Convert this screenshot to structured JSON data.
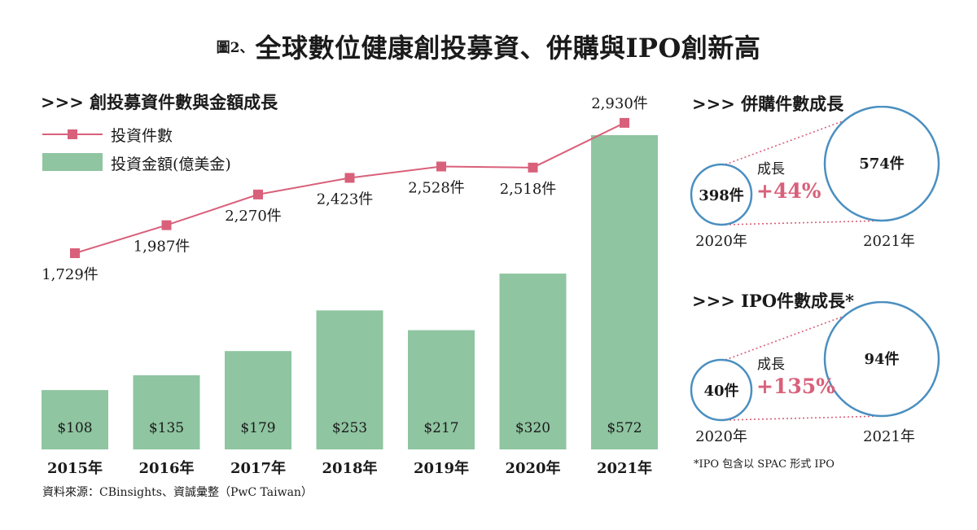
{
  "title": {
    "label": "圖2、",
    "text": "全球數位健康創投募資、併購與IPO創新高"
  },
  "main_chart": {
    "heading": ">>> 創投募資件數與金額成長",
    "legend": {
      "line_label": "投資件數",
      "bar_label": "投資金額(億美金)"
    },
    "colors": {
      "line": "#d9607a",
      "bar": "#8fc5a1"
    }
  },
  "chart_data": [
    {
      "type": "bar",
      "title": "創投募資件數與金額成長",
      "categories": [
        "2015年",
        "2016年",
        "2017年",
        "2018年",
        "2019年",
        "2020年",
        "2021年"
      ],
      "series": [
        {
          "name": "投資金額(億美金)",
          "type": "bar",
          "values": [
            108,
            135,
            179,
            253,
            217,
            320,
            572
          ],
          "labels": [
            "$108",
            "$135",
            "$179",
            "$253",
            "$217",
            "$320",
            "$572"
          ]
        },
        {
          "name": "投資件數",
          "type": "line",
          "values": [
            1729,
            1987,
            2270,
            2423,
            2528,
            2518,
            2930
          ],
          "labels": [
            "1,729件",
            "1,987件",
            "2,270件",
            "2,423件",
            "2,528件",
            "2,518件",
            "2,930件"
          ]
        }
      ]
    },
    {
      "type": "bubble",
      "title": "併購件數成長",
      "categories": [
        "2020年",
        "2021年"
      ],
      "values": [
        398,
        574
      ],
      "value_labels": [
        "398件",
        "574件"
      ],
      "growth_label": "成長",
      "growth": "+44%"
    },
    {
      "type": "bubble",
      "title": "IPO件數成長*",
      "categories": [
        "2020年",
        "2021年"
      ],
      "values": [
        40,
        94
      ],
      "value_labels": [
        "40件",
        "94件"
      ],
      "growth_label": "成長",
      "growth": "+135%"
    }
  ],
  "ma": {
    "heading": ">>> 併購件數成長"
  },
  "ipo": {
    "heading": ">>> IPO件數成長*"
  },
  "footnote": "*IPO 包含以 SPAC 形式 IPO",
  "source": "資料來源：CBinsights、資誠彙整（PwC Taiwan）",
  "colors": {
    "circle": "#4a8fc0",
    "growth": "#d9607a",
    "dotted": "#d9607a"
  }
}
